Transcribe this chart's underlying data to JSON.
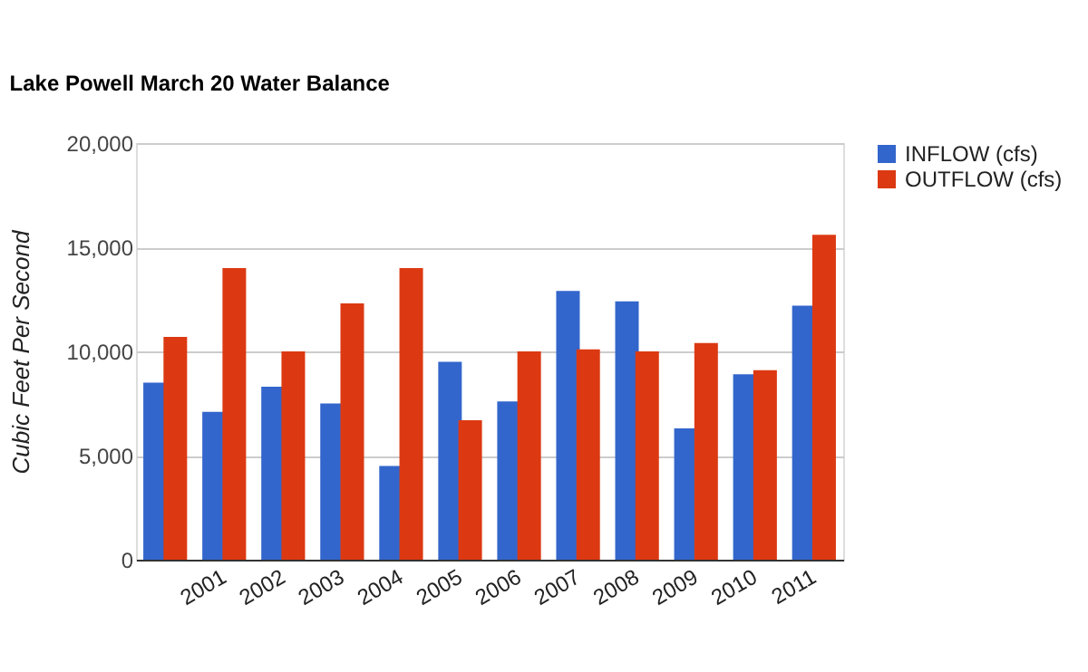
{
  "chart_data": {
    "type": "bar",
    "title": "Lake Powell March 20 Water Balance",
    "ylabel": "Cubic Feet Per Second",
    "categories": [
      null,
      "2001",
      "2002",
      "2003",
      "2004",
      "2005",
      "2006",
      "2007",
      "2008",
      "2009",
      "2010",
      "2011"
    ],
    "series": [
      {
        "name": "INFLOW (cfs)",
        "color": "#3366cc",
        "values": [
          8500,
          7100,
          8300,
          7500,
          4500,
          9500,
          7600,
          12900,
          12400,
          6300,
          8900,
          12200
        ]
      },
      {
        "name": "OUTFLOW (cfs)",
        "color": "#dc3912",
        "values": [
          10700,
          14000,
          10000,
          12300,
          14000,
          6700,
          10000,
          10100,
          10000,
          10400,
          9100,
          15600
        ]
      }
    ],
    "ylim": [
      0,
      20000
    ],
    "yticks": [
      {
        "value": 0,
        "label": "0"
      },
      {
        "value": 5000,
        "label": "5,000"
      },
      {
        "value": 10000,
        "label": "10,000"
      },
      {
        "value": 15000,
        "label": "15,000"
      },
      {
        "value": 20000,
        "label": "20,000"
      }
    ],
    "grid": "y",
    "legend": "right"
  }
}
